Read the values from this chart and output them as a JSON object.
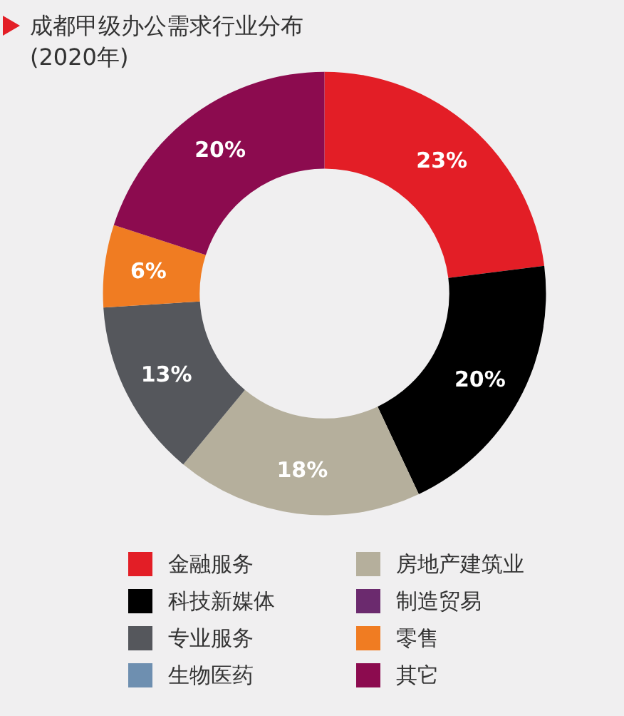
{
  "chart_data": {
    "type": "donut",
    "title": "成都甲级办公需求行业分布",
    "subtitle": "(2020年)",
    "categories": [
      "金融服务",
      "科技新媒体",
      "房地产建筑业",
      "专业服务",
      "零售",
      "其它",
      "生物医药",
      "制造贸易"
    ],
    "values": [
      23,
      20,
      18,
      13,
      6,
      20,
      0,
      0
    ],
    "value_labels": [
      "23%",
      "20%",
      "18%",
      "13%",
      "6%",
      "20%",
      null,
      null
    ],
    "colors": [
      "#e31e26",
      "#000000",
      "#b5af9c",
      "#55575c",
      "#f07c22",
      "#8c0b4f",
      "#6e8fb0",
      "#6b2a6e"
    ],
    "legend": "bottom"
  }
}
